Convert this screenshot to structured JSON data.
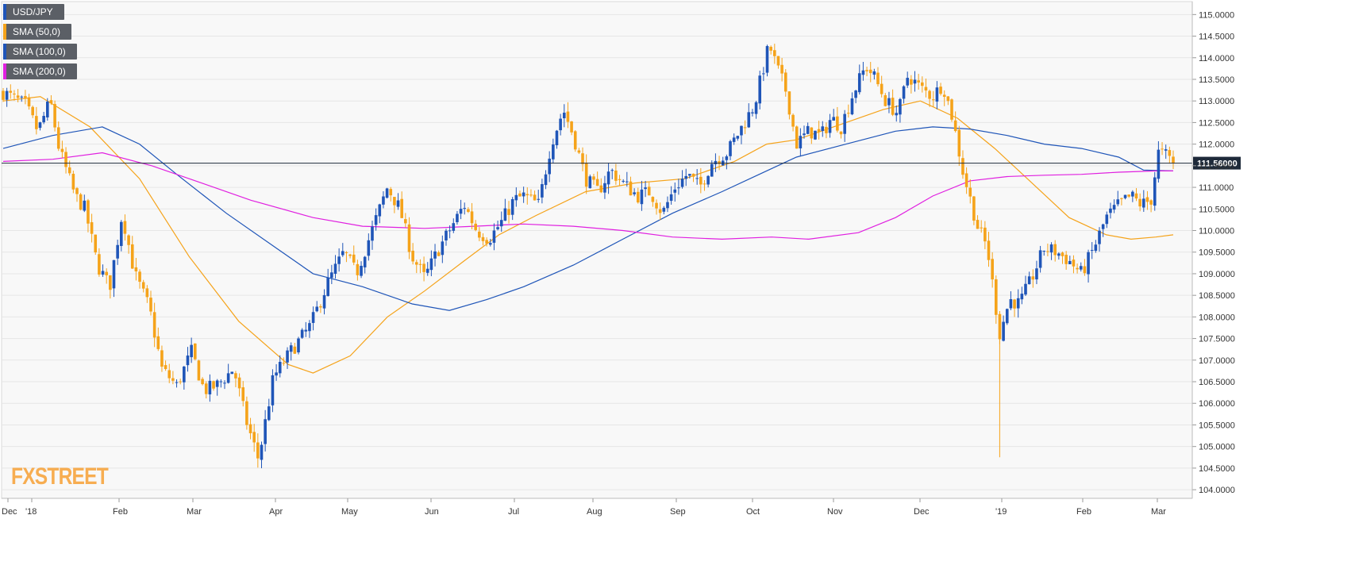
{
  "legend": [
    {
      "label": "USD/JPY",
      "color": "#1f55b8"
    },
    {
      "label": "SMA (50,0)",
      "color": "#f5a31a"
    },
    {
      "label": "SMA (100,0)",
      "color": "#1f55b8"
    },
    {
      "label": "SMA (200,0)",
      "color": "#e020e0"
    }
  ],
  "logo": "FXSTREET",
  "price_tag": "111.56000",
  "colors": {
    "up": "#1f55b8",
    "down": "#f5a31a",
    "sma50": "#f5a31a",
    "sma100": "#1f55b8",
    "sma200": "#e020e0",
    "grid": "#e6e6e6",
    "bg": "#f8f8f8"
  },
  "chart_data": {
    "type": "candlestick",
    "instrument": "USD/JPY",
    "timeframe": "daily",
    "x_labels": [
      "Dec",
      "'18",
      "Feb",
      "Mar",
      "Apr",
      "May",
      "Jun",
      "Jul",
      "Aug",
      "Sep",
      "Oct",
      "Nov",
      "Dec",
      "'19",
      "Feb",
      "Mar"
    ],
    "y_ticks": [
      "115.0000",
      "114.5000",
      "114.0000",
      "113.5000",
      "113.0000",
      "112.5000",
      "112.0000",
      "111.5000",
      "111.0000",
      "110.5000",
      "110.0000",
      "109.5000",
      "109.0000",
      "108.5000",
      "108.0000",
      "107.5000",
      "107.0000",
      "106.5000",
      "106.0000",
      "105.5000",
      "105.0000",
      "104.5000",
      "104.0000"
    ],
    "ylim": [
      103.8,
      115.3
    ],
    "current_price": 111.56,
    "close_path": [
      [
        0,
        113.2
      ],
      [
        18,
        112.9
      ],
      [
        28,
        112.3
      ],
      [
        38,
        113.0
      ],
      [
        45,
        111.9
      ],
      [
        58,
        110.8
      ],
      [
        66,
        110.5
      ],
      [
        76,
        109.2
      ],
      [
        86,
        108.7
      ],
      [
        96,
        110.4
      ],
      [
        106,
        109.0
      ],
      [
        118,
        108.2
      ],
      [
        128,
        106.8
      ],
      [
        140,
        106.4
      ],
      [
        152,
        107.2
      ],
      [
        162,
        106.3
      ],
      [
        172,
        106.4
      ],
      [
        186,
        106.8
      ],
      [
        196,
        105.6
      ],
      [
        206,
        104.7
      ],
      [
        218,
        106.6
      ],
      [
        232,
        107.2
      ],
      [
        248,
        107.8
      ],
      [
        262,
        108.8
      ],
      [
        275,
        109.5
      ],
      [
        285,
        109.0
      ],
      [
        295,
        109.8
      ],
      [
        310,
        111.0
      ],
      [
        320,
        110.5
      ],
      [
        330,
        109.4
      ],
      [
        340,
        108.9
      ],
      [
        350,
        109.5
      ],
      [
        362,
        110.1
      ],
      [
        372,
        110.6
      ],
      [
        382,
        110.0
      ],
      [
        392,
        109.8
      ],
      [
        402,
        110.2
      ],
      [
        412,
        110.7
      ],
      [
        420,
        110.8
      ],
      [
        432,
        110.6
      ],
      [
        442,
        112.0
      ],
      [
        452,
        112.8
      ],
      [
        460,
        112.2
      ],
      [
        470,
        111.2
      ],
      [
        480,
        110.9
      ],
      [
        490,
        111.4
      ],
      [
        500,
        111.1
      ],
      [
        512,
        110.8
      ],
      [
        522,
        110.9
      ],
      [
        532,
        110.4
      ],
      [
        542,
        111.0
      ],
      [
        552,
        111.3
      ],
      [
        562,
        111.0
      ],
      [
        572,
        111.6
      ],
      [
        584,
        111.8
      ],
      [
        596,
        112.4
      ],
      [
        606,
        112.9
      ],
      [
        618,
        114.3
      ],
      [
        624,
        113.8
      ],
      [
        632,
        113.2
      ],
      [
        640,
        112.0
      ],
      [
        650,
        112.3
      ],
      [
        660,
        112.2
      ],
      [
        668,
        112.6
      ],
      [
        676,
        112.4
      ],
      [
        686,
        113.2
      ],
      [
        696,
        113.8
      ],
      [
        702,
        113.6
      ],
      [
        712,
        113.0
      ],
      [
        722,
        112.7
      ],
      [
        730,
        113.6
      ],
      [
        740,
        113.3
      ],
      [
        750,
        113.1
      ],
      [
        758,
        113.4
      ],
      [
        766,
        112.6
      ],
      [
        774,
        111.4
      ],
      [
        786,
        110.1
      ],
      [
        794,
        109.6
      ],
      [
        804,
        107.6
      ],
      [
        812,
        108.4
      ],
      [
        820,
        108.3
      ],
      [
        830,
        108.9
      ],
      [
        840,
        109.6
      ],
      [
        850,
        109.5
      ],
      [
        860,
        109.3
      ],
      [
        870,
        109.0
      ],
      [
        880,
        109.6
      ],
      [
        890,
        110.3
      ],
      [
        900,
        110.6
      ],
      [
        910,
        110.8
      ],
      [
        918,
        110.6
      ],
      [
        926,
        110.7
      ],
      [
        932,
        111.8
      ],
      [
        938,
        111.75
      ],
      [
        944,
        111.56
      ]
    ],
    "series": [
      {
        "name": "SMA (50,0)",
        "values": [
          [
            0,
            113.0
          ],
          [
            30,
            113.1
          ],
          [
            70,
            112.4
          ],
          [
            110,
            111.2
          ],
          [
            150,
            109.4
          ],
          [
            190,
            107.9
          ],
          [
            230,
            106.9
          ],
          [
            250,
            106.7
          ],
          [
            280,
            107.1
          ],
          [
            310,
            108.0
          ],
          [
            340,
            108.6
          ],
          [
            372,
            109.3
          ],
          [
            400,
            109.9
          ],
          [
            430,
            110.35
          ],
          [
            470,
            110.9
          ],
          [
            510,
            111.1
          ],
          [
            550,
            111.2
          ],
          [
            590,
            111.6
          ],
          [
            616,
            112.0
          ],
          [
            640,
            112.1
          ],
          [
            680,
            112.5
          ],
          [
            710,
            112.8
          ],
          [
            740,
            113.0
          ],
          [
            770,
            112.6
          ],
          [
            800,
            111.9
          ],
          [
            830,
            111.1
          ],
          [
            860,
            110.3
          ],
          [
            890,
            109.9
          ],
          [
            910,
            109.8
          ],
          [
            930,
            109.85
          ],
          [
            944,
            109.9
          ]
        ]
      },
      {
        "name": "SMA (100,0)",
        "values": [
          [
            0,
            111.9
          ],
          [
            40,
            112.2
          ],
          [
            80,
            112.4
          ],
          [
            110,
            112.0
          ],
          [
            140,
            111.3
          ],
          [
            180,
            110.4
          ],
          [
            220,
            109.6
          ],
          [
            250,
            109.0
          ],
          [
            290,
            108.7
          ],
          [
            330,
            108.3
          ],
          [
            360,
            108.15
          ],
          [
            390,
            108.4
          ],
          [
            420,
            108.7
          ],
          [
            460,
            109.2
          ],
          [
            500,
            109.8
          ],
          [
            540,
            110.4
          ],
          [
            580,
            110.9
          ],
          [
            610,
            111.3
          ],
          [
            640,
            111.7
          ],
          [
            680,
            112.0
          ],
          [
            720,
            112.3
          ],
          [
            750,
            112.4
          ],
          [
            780,
            112.35
          ],
          [
            810,
            112.2
          ],
          [
            840,
            112.0
          ],
          [
            870,
            111.9
          ],
          [
            900,
            111.7
          ],
          [
            920,
            111.4
          ],
          [
            944,
            111.38
          ]
        ]
      },
      {
        "name": "SMA (200,0)",
        "values": [
          [
            0,
            111.6
          ],
          [
            40,
            111.65
          ],
          [
            80,
            111.8
          ],
          [
            120,
            111.5
          ],
          [
            160,
            111.1
          ],
          [
            200,
            110.7
          ],
          [
            250,
            110.3
          ],
          [
            290,
            110.1
          ],
          [
            340,
            110.05
          ],
          [
            380,
            110.1
          ],
          [
            420,
            110.15
          ],
          [
            460,
            110.1
          ],
          [
            500,
            110.0
          ],
          [
            540,
            109.85
          ],
          [
            580,
            109.8
          ],
          [
            620,
            109.85
          ],
          [
            650,
            109.8
          ],
          [
            690,
            109.95
          ],
          [
            720,
            110.3
          ],
          [
            750,
            110.8
          ],
          [
            780,
            111.15
          ],
          [
            810,
            111.25
          ],
          [
            840,
            111.28
          ],
          [
            870,
            111.3
          ],
          [
            900,
            111.35
          ],
          [
            930,
            111.38
          ],
          [
            944,
            111.38
          ]
        ]
      }
    ]
  }
}
